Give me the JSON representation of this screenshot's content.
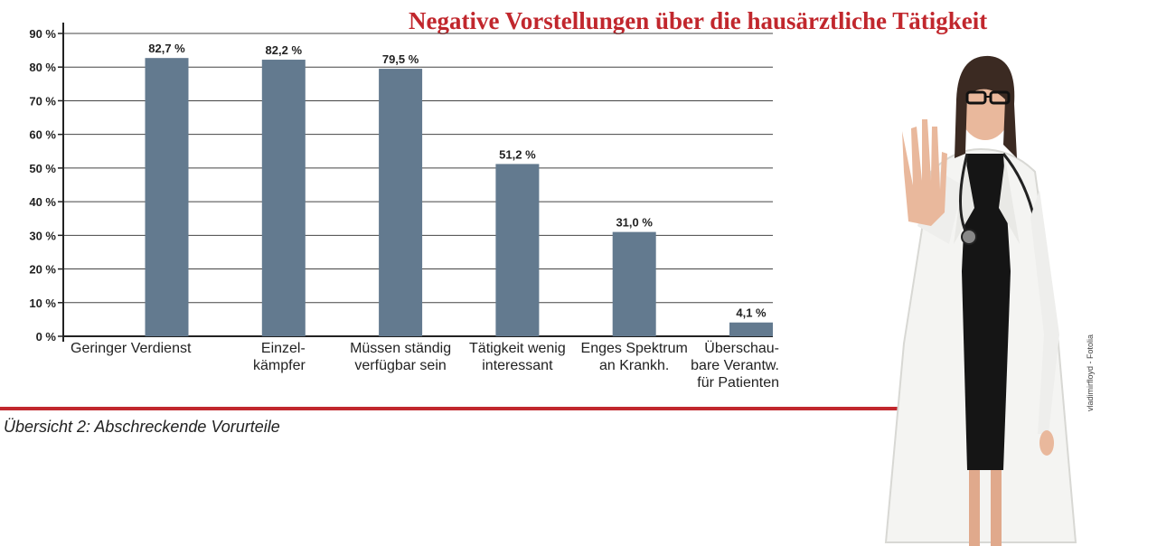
{
  "chart_data": {
    "type": "bar",
    "title": "Negative Vorstellungen über die hausärztliche Tätigkeit",
    "categories": [
      "Geringer Verdienst",
      "Einzel-\nkämpfer",
      "Müssen ständig\nverfügbar sein",
      "Tätigkeit wenig\ninteressant",
      "Enges Spektrum\nan Krankh.",
      "Überschau-\nbare Verantw.\nfür Patienten"
    ],
    "values": [
      82.7,
      82.2,
      79.5,
      51.2,
      31.0,
      4.1
    ],
    "value_labels": [
      "82,7 %",
      "82,2 %",
      "79,5 %",
      "51,2 %",
      "31,0 %",
      "4,1 %"
    ],
    "yticks": [
      "0 %",
      "10 %",
      "20 %",
      "30 %",
      "40 %",
      "50 %",
      "60 %",
      "70 %",
      "80 %",
      "90 %"
    ],
    "ylim": [
      0,
      90
    ],
    "grid": true,
    "bar_color": "#637a8f"
  },
  "caption": "Übersicht 2: Abschreckende Vorurteile",
  "photo_credit": "vladimirfloyd - Fotolia",
  "accent_color": "#c1272d"
}
